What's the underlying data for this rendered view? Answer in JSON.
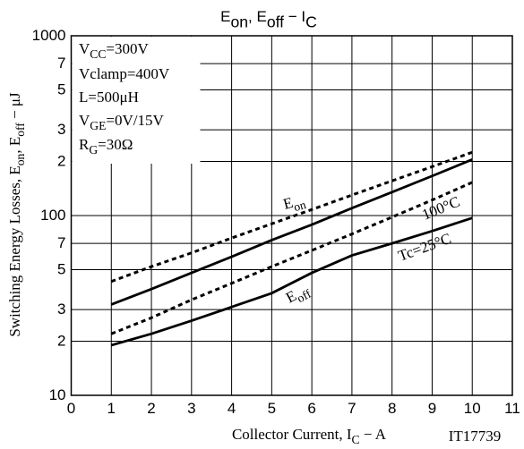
{
  "chart_data": {
    "type": "line",
    "title": [
      {
        "text": "E"
      },
      {
        "text": "on",
        "sub": true
      },
      {
        "text": ", E"
      },
      {
        "text": "off",
        "sub": true
      },
      {
        "text": "  −  I"
      },
      {
        "text": "C",
        "sub": true
      }
    ],
    "xlabel": [
      {
        "text": "Collector Current, I"
      },
      {
        "text": "C",
        "sub": true
      },
      {
        "text": "  −  A"
      }
    ],
    "ylabel": [
      {
        "text": "Switching Energy Losses, E"
      },
      {
        "text": "on",
        "sub": true
      },
      {
        "text": ", E"
      },
      {
        "text": "off",
        "sub": true
      },
      {
        "text": "  −  μJ"
      }
    ],
    "code": "IT17739",
    "xlim": [
      0,
      11
    ],
    "xticks": [
      0,
      1,
      2,
      3,
      4,
      5,
      6,
      7,
      8,
      9,
      10,
      11
    ],
    "ylim": [
      10,
      1000
    ],
    "yscale": "log",
    "yticks": [
      10,
      {
        "value": 20,
        "label": "2"
      },
      {
        "value": 30,
        "label": "3"
      },
      {
        "value": 50,
        "label": "5"
      },
      {
        "value": 70,
        "label": "7"
      },
      100,
      {
        "value": 200,
        "label": "2"
      },
      {
        "value": 300,
        "label": "3"
      },
      {
        "value": 500,
        "label": "5"
      },
      {
        "value": 700,
        "label": "7"
      },
      1000
    ],
    "grid": true,
    "x": [
      1,
      2,
      3,
      4,
      5,
      6,
      7,
      8,
      9,
      10
    ],
    "series": [
      {
        "color": "#000000",
        "dashed": true,
        "values": [
          43,
          52,
          62,
          75,
          90,
          108,
          130,
          156,
          187,
          225
        ]
      },
      {
        "color": "#000000",
        "dashed": false,
        "values": [
          32,
          39,
          48,
          59,
          73,
          89,
          110,
          135,
          166,
          205
        ]
      },
      {
        "color": "#000000",
        "dashed": true,
        "values": [
          22,
          27,
          34,
          42,
          52,
          64,
          79,
          98,
          122,
          153
        ]
      },
      {
        "color": "#000000",
        "dashed": false,
        "values": [
          19,
          22,
          26,
          31,
          37,
          48,
          60,
          70,
          82,
          97
        ]
      }
    ],
    "annotations": [
      [
        {
          "text": "V"
        },
        {
          "text": "CC",
          "sub": true
        },
        {
          "text": "=300V"
        }
      ],
      [
        {
          "text": "Vclamp=400V"
        }
      ],
      [
        {
          "text": "L=500μH"
        }
      ],
      [
        {
          "text": "V"
        },
        {
          "text": "GE",
          "sub": true
        },
        {
          "text": "=0V/15V"
        }
      ],
      [
        {
          "text": "R"
        },
        {
          "text": "G",
          "sub": true
        },
        {
          "text": "=30Ω"
        }
      ],
      [
        {
          "text": "E"
        },
        {
          "text": "on",
          "sub": true
        }
      ],
      [
        {
          "text": "100°C"
        }
      ],
      [
        {
          "text": "Tc=25°C"
        }
      ],
      [
        {
          "text": "E"
        },
        {
          "text": "off",
          "sub": true
        }
      ]
    ]
  }
}
